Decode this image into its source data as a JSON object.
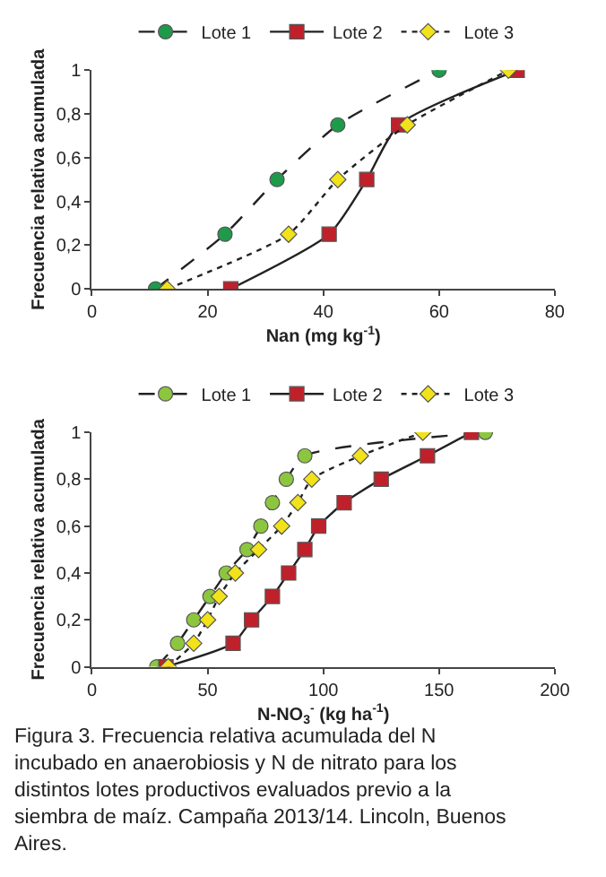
{
  "chart_data": [
    {
      "type": "line",
      "xlabel": "Nan (mg kg$^{-1}$)",
      "ylabel": "Frecuencia relativa acumulada",
      "xlim": [
        0,
        80
      ],
      "xticks": [
        0,
        20,
        40,
        60,
        80
      ],
      "ylim": [
        0,
        1
      ],
      "yticks": [
        0,
        {
          "value": 0.2,
          "label": "0,2"
        },
        {
          "value": 0.4,
          "label": "0,4"
        },
        {
          "value": 0.6,
          "label": "0,6"
        },
        {
          "value": 0.8,
          "label": "0,8"
        },
        1
      ],
      "legend": "top",
      "series": [
        {
          "name": "Lote 1",
          "color": "#1f9a4a",
          "marker": "circle",
          "line_style": "dashed",
          "x": [
            11,
            23,
            32,
            42.5,
            60
          ],
          "values": [
            0,
            0.25,
            0.5,
            0.75,
            1
          ]
        },
        {
          "name": "Lote 2",
          "color": "#c0202a",
          "marker": "square",
          "line_style": "solid",
          "x": [
            24,
            41,
            47.5,
            53,
            73.5
          ],
          "values": [
            0,
            0.25,
            0.5,
            0.75,
            1
          ]
        },
        {
          "name": "Lote 3",
          "color": "#f2e21a",
          "marker": "diamond",
          "line_style": "dotted",
          "x": [
            13,
            34,
            42.5,
            54.5,
            72
          ],
          "values": [
            0,
            0.25,
            0.5,
            0.75,
            1
          ]
        }
      ]
    },
    {
      "type": "line",
      "xlabel": "N-NO$_{3}$$^{-}$ (kg ha$^{-1}$)",
      "ylabel": "Frecuencia relativa acumulada",
      "xlim": [
        0,
        200
      ],
      "xticks": [
        0,
        50,
        100,
        150,
        200
      ],
      "ylim": [
        0,
        1
      ],
      "yticks": [
        0,
        {
          "value": 0.2,
          "label": "0,2"
        },
        {
          "value": 0.4,
          "label": "0,4"
        },
        {
          "value": 0.6,
          "label": "0,6"
        },
        {
          "value": 0.8,
          "label": "0,8"
        },
        1
      ],
      "legend": "top",
      "annotations": [
        "Figura 3. Frecuencia relativa acumulada del N incubado en anaerobiosis y N de nitrato para los distintos lotes productivos evaluados previo a la siembra de maíz. Campaña 2013/14. Lincoln, Buenos Aires."
      ],
      "series": [
        {
          "name": "Lote 1",
          "color": "#8cc63f",
          "marker": "circle",
          "line_style": "dashed",
          "x": [
            28,
            37,
            44,
            51,
            58,
            67,
            73,
            78,
            84,
            92,
            170
          ],
          "values": [
            0,
            0.1,
            0.2,
            0.3,
            0.4,
            0.5,
            0.6,
            0.7,
            0.8,
            0.9,
            1
          ]
        },
        {
          "name": "Lote 2",
          "color": "#c0202a",
          "marker": "square",
          "line_style": "solid",
          "x": [
            32,
            61,
            69,
            78,
            85,
            92,
            98,
            109,
            125,
            145,
            164
          ],
          "values": [
            0,
            0.1,
            0.2,
            0.3,
            0.4,
            0.5,
            0.6,
            0.7,
            0.8,
            0.9,
            1
          ]
        },
        {
          "name": "Lote 3",
          "color": "#f2e21a",
          "marker": "diamond",
          "line_style": "dotted",
          "x": [
            33,
            44,
            50,
            55,
            62,
            72,
            82,
            89,
            95,
            116,
            143
          ],
          "values": [
            0,
            0.1,
            0.2,
            0.3,
            0.4,
            0.5,
            0.6,
            0.7,
            0.8,
            0.9,
            1
          ]
        }
      ]
    }
  ]
}
